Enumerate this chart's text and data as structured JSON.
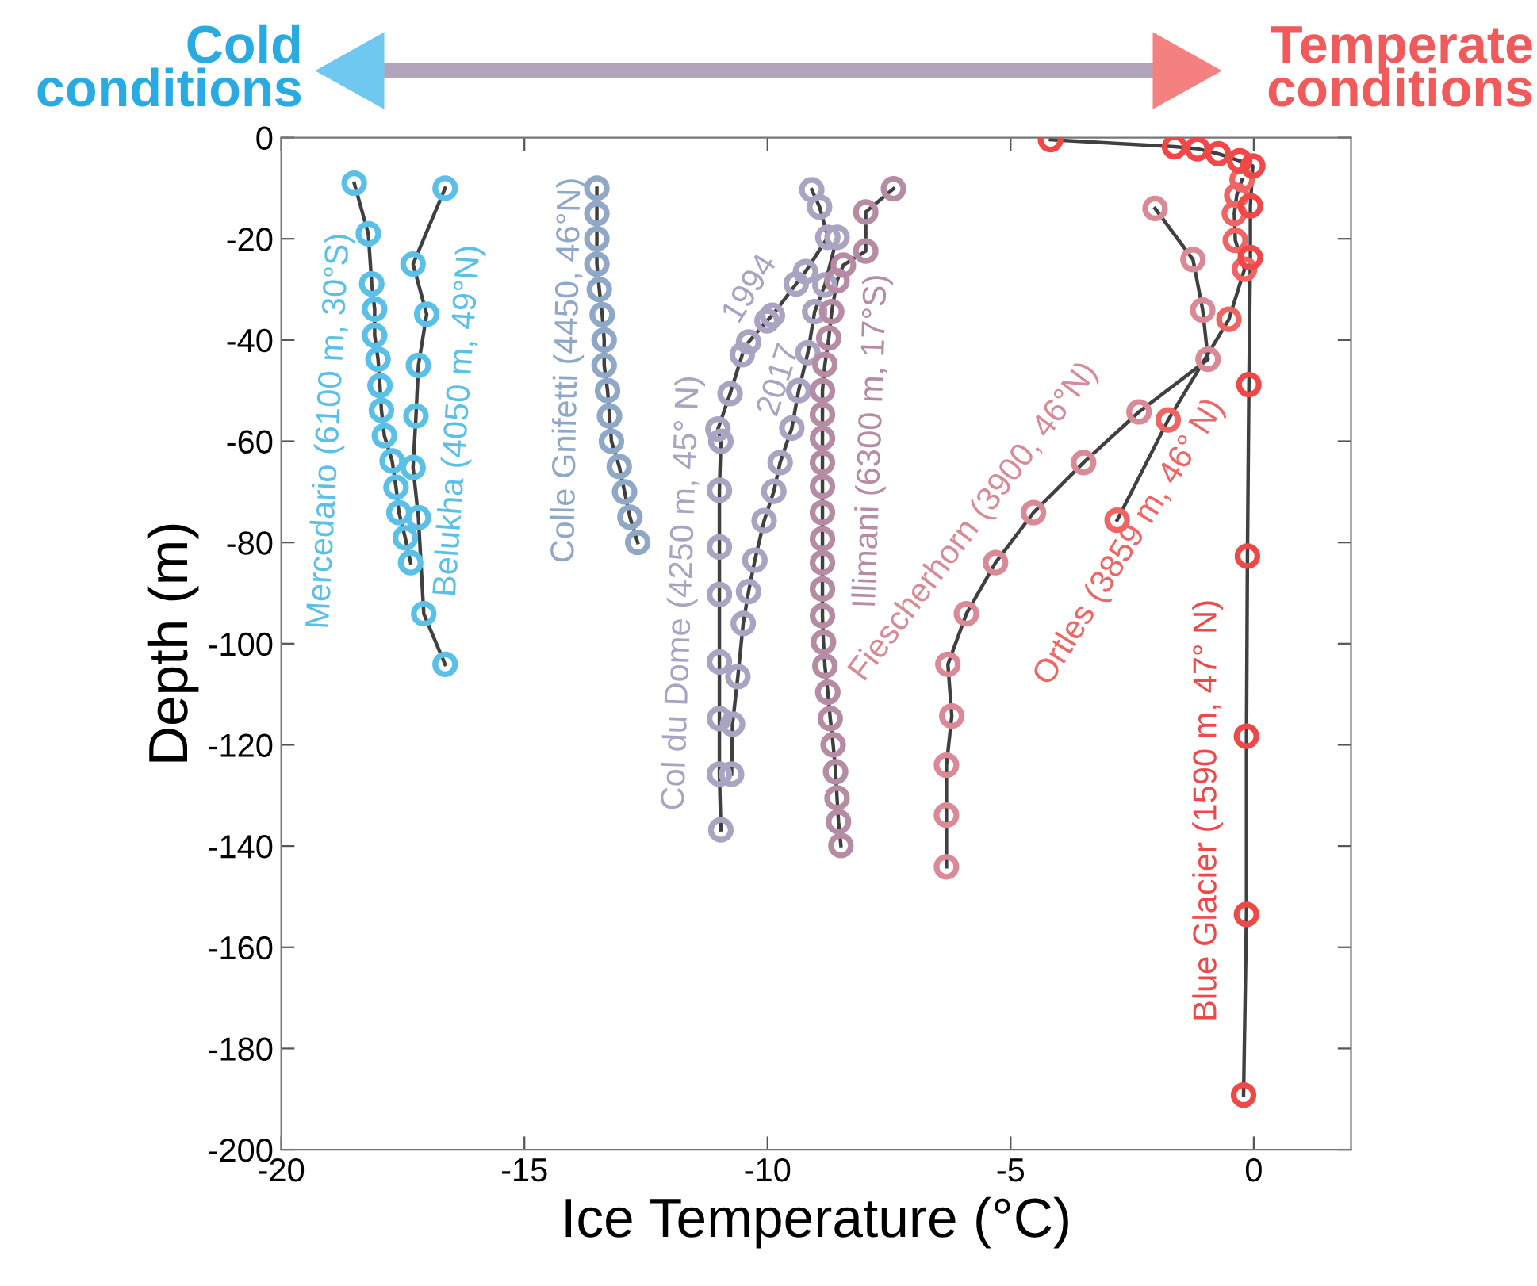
{
  "chart_data": {
    "type": "line",
    "xlabel": "Ice Temperature (°C)",
    "ylabel": "Depth (m)",
    "xlim": [
      -20,
      2
    ],
    "ylim": [
      -200,
      0
    ],
    "xticks": [
      -20,
      -15,
      -10,
      -5,
      0
    ],
    "yticks": [
      -200,
      -180,
      -160,
      -140,
      -120,
      -100,
      -80,
      -60,
      -40,
      -20,
      0
    ],
    "grid": false,
    "marker": "circle",
    "line_style": "solid",
    "orientation": "horizontal",
    "annotations": [
      "Cold conditions",
      "Temperate conditions",
      {
        "text": "Col du Dome (4250 m, 45° N)",
        "x": -11.0,
        "y": -90
      }
    ],
    "series": [
      {
        "name": "Mercedario (6100 m, 30°S)",
        "color": "#5bc0e8",
        "values": [
          -18.5,
          -18.21,
          -18.14,
          -18.08,
          -18.08,
          -18.01,
          -17.97,
          -17.94,
          -17.88,
          -17.72,
          -17.64,
          -17.58,
          -17.45,
          -17.34
        ],
        "x": [
          -9.0,
          -19.0,
          -28.9,
          -33.9,
          -39.1,
          -43.8,
          -49.0,
          -53.9,
          -58.9,
          -63.9,
          -69.1,
          -74.1,
          -79.1,
          -84.0
        ]
      },
      {
        "name": "Belukha (4050 m, 49°N)",
        "color": "#5bc0e8",
        "values": [
          -16.63,
          -17.29,
          -17.01,
          -17.18,
          -17.23,
          -17.29,
          -17.18,
          -17.07,
          -16.63
        ],
        "x": [
          -10.0,
          -25.0,
          -34.9,
          -45.0,
          -55.0,
          -65.2,
          -75.1,
          -94.1,
          -104.1
        ]
      },
      {
        "name": "Colle Gnifetti (4450, 46°N)",
        "color": "#8fa8c8",
        "values": [
          -13.51,
          -13.51,
          -13.51,
          -13.51,
          -13.46,
          -13.4,
          -13.36,
          -13.36,
          -13.29,
          -13.25,
          -13.21,
          -13.05,
          -12.94,
          -12.83,
          -12.67
        ],
        "x": [
          -10,
          -15,
          -20,
          -25,
          -30,
          -35,
          -40,
          -45,
          -50,
          -55,
          -60,
          -65,
          -70,
          -75,
          -80
        ]
      },
      {
        "name": "1994",
        "color": "#aaa3c2",
        "values": [
          -9.09,
          -8.93,
          -8.76,
          -9.22,
          -9.41,
          -9.9,
          -10.01,
          -10.39,
          -10.52,
          -10.77,
          -11.02,
          -10.96,
          -10.99,
          -10.99,
          -10.99,
          -10.99,
          -10.99,
          -10.99,
          -10.96
        ],
        "x": [
          -10.3,
          -13.7,
          -19.7,
          -26.5,
          -28.9,
          -35.1,
          -36.2,
          -40.4,
          -42.9,
          -50.6,
          -57.6,
          -60.0,
          -69.7,
          -80.9,
          -90.3,
          -103.6,
          -114.8,
          -125.8,
          -136.8
        ]
      },
      {
        "name": "2017",
        "color": "#aaa3c2",
        "values": [
          -8.57,
          -8.82,
          -9.03,
          -9.17,
          -9.36,
          -9.5,
          -9.74,
          -9.87,
          -10.07,
          -10.26,
          -10.39,
          -10.5,
          -10.61,
          -10.72,
          -10.74
        ],
        "x": [
          -19.7,
          -29.1,
          -34.4,
          -42.5,
          -50.0,
          -57.4,
          -64.2,
          -69.9,
          -75.7,
          -83.5,
          -89.7,
          -96.0,
          -106.5,
          -115.9,
          -125.8
        ]
      },
      {
        "name": "Illimani (6300 m, 17°S)",
        "color": "#b58ca3",
        "values": [
          -7.41,
          -7.98,
          -7.98,
          -8.44,
          -8.57,
          -8.68,
          -8.74,
          -8.82,
          -8.87,
          -8.87,
          -8.87,
          -8.87,
          -8.87,
          -8.87,
          -8.87,
          -8.87,
          -8.87,
          -8.87,
          -8.85,
          -8.82,
          -8.76,
          -8.71,
          -8.65,
          -8.6,
          -8.57,
          -8.54,
          -8.49
        ],
        "x": [
          -10.1,
          -14.7,
          -22.4,
          -25.2,
          -28.3,
          -34.4,
          -39.6,
          -44.8,
          -50.0,
          -54.7,
          -59.4,
          -64.2,
          -68.9,
          -74.1,
          -79.3,
          -84.0,
          -89.2,
          -94.5,
          -99.7,
          -104.4,
          -109.6,
          -114.8,
          -120.0,
          -125.3,
          -130.5,
          -135.2,
          -139.9
        ]
      },
      {
        "name": "Fiescherhorn (3900, 46°N)",
        "color": "#d98a96",
        "values": [
          -2.03,
          -1.25,
          -1.05,
          -0.94,
          -2.36,
          -3.5,
          -4.53,
          -5.31,
          -5.91,
          -6.29,
          -6.21,
          -6.32,
          -6.32,
          -6.32
        ],
        "x": [
          -14.0,
          -24.1,
          -34.1,
          -43.8,
          -54.2,
          -64.2,
          -74.1,
          -84.0,
          -94.1,
          -104.1,
          -114.3,
          -124.0,
          -133.9,
          -144.1
        ]
      },
      {
        "name": "Ortles (3859 m, 46° N)",
        "color": "#f06464",
        "values": [
          -0.24,
          -0.35,
          -0.4,
          -0.38,
          -0.19,
          -0.51,
          -1.76,
          -2.81
        ],
        "x": [
          -8.3,
          -11.4,
          -15.0,
          -20.3,
          -26.0,
          -35.9,
          -55.8,
          -75.6
        ]
      },
      {
        "name": "Blue Glacier (1590 m, 47° N)",
        "color": "#f04848",
        "values": [
          -4.18,
          -1.63,
          -1.16,
          -0.73,
          -0.29,
          -0.02,
          -0.07,
          -0.07,
          -0.1,
          -0.13,
          -0.15,
          -0.15,
          -0.21
        ],
        "x": [
          -0.4,
          -1.8,
          -2.2,
          -3.2,
          -4.6,
          -5.6,
          -13.5,
          -23.7,
          -48.8,
          -82.7,
          -118.3,
          -153.5,
          -189.2
        ]
      }
    ]
  }
}
